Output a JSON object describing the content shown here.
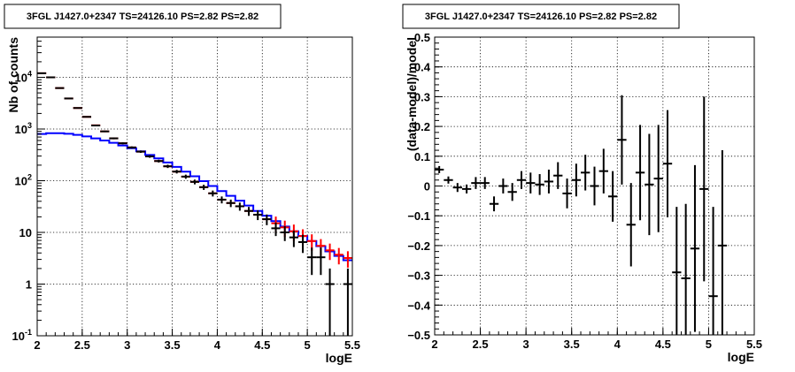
{
  "chart_data": [
    {
      "type": "histogram-errorbars",
      "title": "3FGL J1427.0+2347 TS=24126.10 PS=2.82 PS=2.82",
      "xlabel": "logE",
      "ylabel": "Nb of counts",
      "xlim": [
        2,
        5.5
      ],
      "ylim": [
        0.1,
        60000
      ],
      "ylog": true,
      "grid": true,
      "x_ticks": [
        "2",
        "2.5",
        "3",
        "3.5",
        "4",
        "4.5",
        "5",
        "5.5"
      ],
      "y_ticks": [
        "10^-1",
        "1",
        "10",
        "10^2",
        "10^3",
        "10^4"
      ],
      "x": [
        2.05,
        2.15,
        2.25,
        2.35,
        2.45,
        2.55,
        2.65,
        2.75,
        2.85,
        2.95,
        3.05,
        3.15,
        3.25,
        3.35,
        3.45,
        3.55,
        3.65,
        3.75,
        3.85,
        3.95,
        4.05,
        4.15,
        4.25,
        4.35,
        4.45,
        4.55,
        4.65,
        4.75,
        4.85,
        4.95,
        5.05,
        5.15,
        5.25,
        5.35,
        5.45
      ],
      "series": [
        {
          "color": "#000000",
          "style": "points",
          "values": [
            12000,
            10000,
            6200,
            3900,
            2550,
            1720,
            1170,
            900,
            660,
            530,
            440,
            365,
            295,
            240,
            190,
            150,
            120,
            95,
            75,
            57,
            43,
            37,
            32,
            26,
            22,
            18,
            12,
            10,
            8,
            6.5,
            3.3,
            3.3,
            1,
            0,
            1
          ],
          "errors": [
            110,
            100,
            79,
            62,
            50,
            41,
            34,
            30,
            26,
            23,
            21,
            19,
            17,
            15,
            14,
            12,
            11,
            10,
            8.7,
            7.5,
            6.6,
            6.1,
            5.7,
            5.1,
            4.7,
            4.2,
            3.5,
            3.2,
            2.8,
            2.5,
            1.8,
            1.8,
            1,
            0,
            1
          ]
        },
        {
          "color": "#ff0000",
          "style": "model",
          "values": [
            12000,
            10000,
            6200,
            3900,
            2550,
            1720,
            1180,
            900,
            660,
            530,
            440,
            365,
            295,
            240,
            190,
            150,
            120,
            95,
            75,
            57,
            43,
            37,
            32,
            26,
            22,
            18,
            15,
            12.5,
            10.5,
            8.5,
            6.8,
            5.5,
            4.5,
            3.7,
            3.2
          ]
        },
        {
          "color": "#0000ff",
          "style": "step",
          "values": [
            800,
            830,
            830,
            810,
            770,
            720,
            660,
            600,
            540,
            480,
            425,
            370,
            315,
            270,
            225,
            185,
            150,
            122,
            98,
            79,
            63,
            51,
            41,
            33,
            26,
            21,
            16.5,
            13,
            10.5,
            8.5,
            6.8,
            5.4,
            4.3,
            3.5,
            2.9
          ]
        }
      ]
    },
    {
      "type": "residuals-errorbars",
      "title": "3FGL J1427.0+2347 TS=24126.10 PS=2.82 PS=2.82",
      "xlabel": "logE",
      "ylabel": "(data-model)/model",
      "xlim": [
        2,
        5.5
      ],
      "ylim": [
        -0.5,
        0.5
      ],
      "grid": true,
      "x_ticks": [
        "2",
        "2.5",
        "3",
        "3.5",
        "4",
        "4.5",
        "5",
        "5.5"
      ],
      "y_ticks": [
        "−0.5",
        "−0.4",
        "−0.3",
        "−0.2",
        "−0.1",
        "0",
        "0.1",
        "0.2",
        "0.3",
        "0.4",
        "0.5"
      ],
      "x": [
        2.05,
        2.15,
        2.25,
        2.35,
        2.45,
        2.55,
        2.65,
        2.75,
        2.85,
        2.95,
        3.05,
        3.15,
        3.25,
        3.35,
        3.45,
        3.55,
        3.65,
        3.75,
        3.85,
        3.95,
        4.05,
        4.15,
        4.25,
        4.35,
        4.45,
        4.55,
        4.65,
        4.75,
        4.85,
        4.95,
        5.05,
        5.15
      ],
      "series": [
        {
          "color": "#000000",
          "style": "points",
          "values": [
            0.055,
            0.02,
            -0.005,
            -0.01,
            0.01,
            0.01,
            -0.06,
            0.0,
            -0.02,
            0.02,
            0.01,
            0.005,
            0.015,
            0.035,
            -0.025,
            0.02,
            0.045,
            0.0,
            0.05,
            -0.035,
            0.155,
            -0.13,
            0.045,
            0.005,
            0.025,
            0.075,
            -0.29,
            -0.31,
            -0.21,
            -0.01,
            -0.37,
            -0.2
          ],
          "errors": [
            0.012,
            0.012,
            0.015,
            0.015,
            0.02,
            0.02,
            0.025,
            0.025,
            0.03,
            0.03,
            0.035,
            0.035,
            0.04,
            0.045,
            0.05,
            0.055,
            0.06,
            0.065,
            0.075,
            0.085,
            0.15,
            0.14,
            0.16,
            0.17,
            0.18,
            0.18,
            0.22,
            0.25,
            0.28,
            0.31,
            0.3,
            0.32
          ]
        }
      ]
    }
  ]
}
